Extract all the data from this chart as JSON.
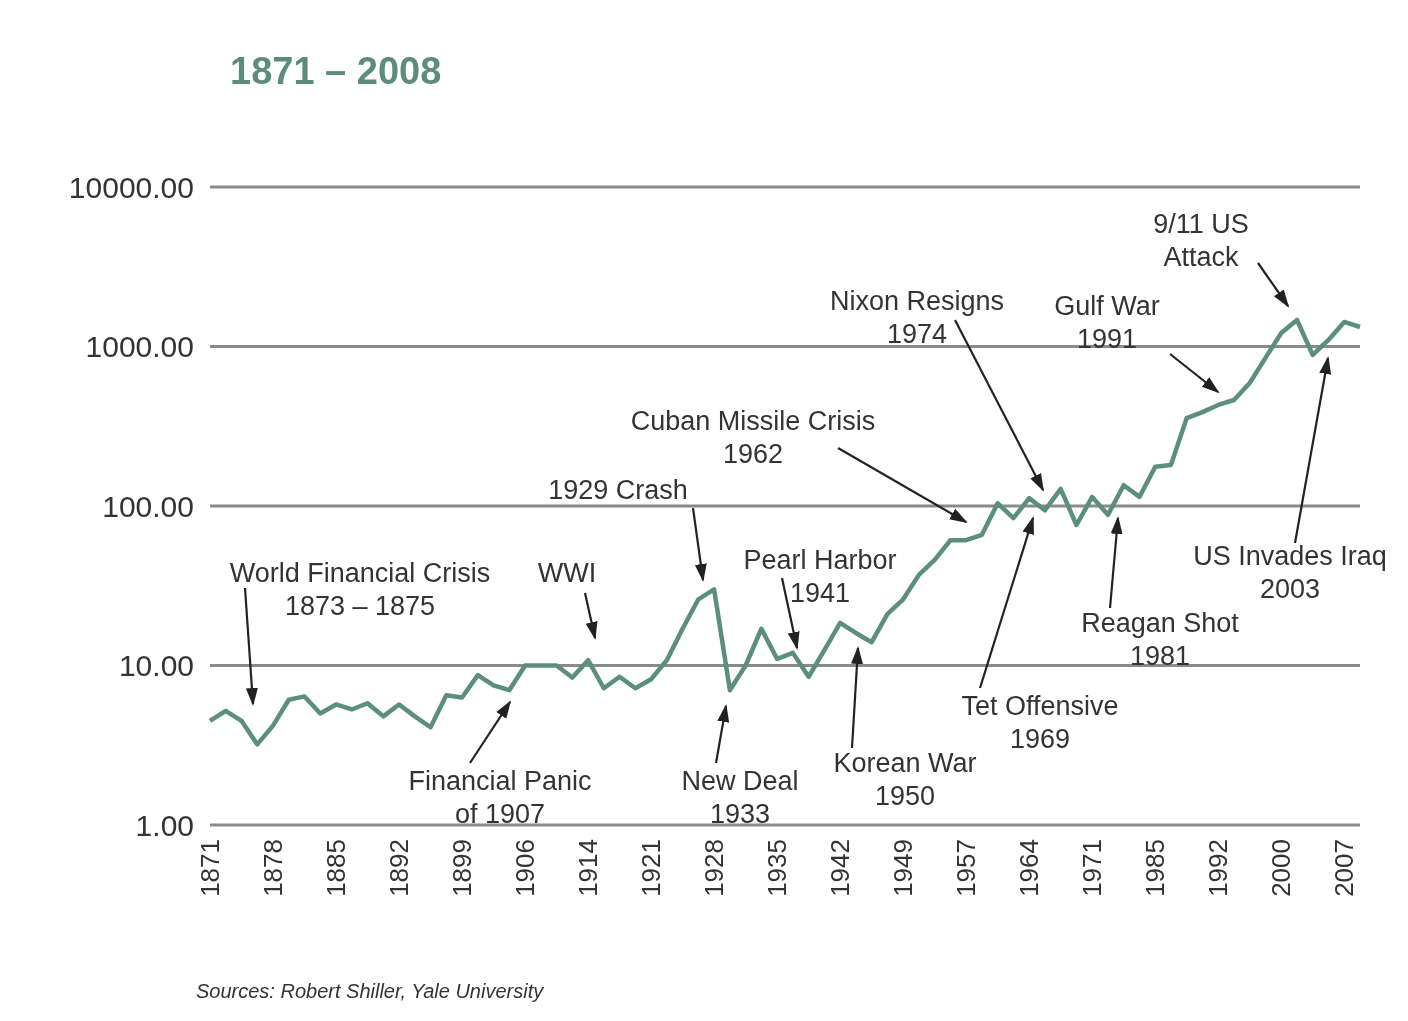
{
  "chart_data": {
    "type": "line",
    "title": "1871 – 2008",
    "categories": [
      "1871",
      null,
      null,
      null,
      "1878",
      null,
      null,
      null,
      "1885",
      null,
      null,
      null,
      "1892",
      null,
      null,
      null,
      "1899",
      null,
      null,
      null,
      "1906",
      null,
      null,
      null,
      "1914",
      null,
      null,
      null,
      "1921",
      null,
      null,
      null,
      "1928",
      null,
      null,
      null,
      "1935",
      null,
      null,
      null,
      "1942",
      null,
      null,
      null,
      "1949",
      null,
      null,
      null,
      "1957",
      null,
      null,
      null,
      "1964",
      null,
      null,
      null,
      "1971",
      null,
      null,
      null,
      "1985",
      null,
      null,
      null,
      "1992",
      null,
      null,
      null,
      "2000",
      null,
      null,
      null,
      "2007",
      null
    ],
    "series": [
      {
        "color": "#5b8f7b",
        "values": [
          4.5,
          5.2,
          4.5,
          3.2,
          4.2,
          6.1,
          6.4,
          5.0,
          5.7,
          5.3,
          5.8,
          4.8,
          5.7,
          4.8,
          4.1,
          6.5,
          6.3,
          8.7,
          7.5,
          7.0,
          10,
          10,
          10,
          8.4,
          10.8,
          7.2,
          8.5,
          7.2,
          8.2,
          10.8,
          17,
          26,
          30,
          7.0,
          10,
          17,
          11,
          12,
          8.5,
          12.5,
          18.5,
          16,
          14,
          21,
          26,
          37,
          46,
          61,
          61,
          66,
          104,
          84,
          112,
          94,
          128,
          76,
          114,
          88,
          135,
          114,
          176,
          181,
          356,
          388,
          430,
          462,
          590,
          848,
          1216,
          1466,
          885,
          1099,
          1425,
          1325
        ]
      }
    ],
    "log": "y",
    "ylim": [
      1,
      10000
    ],
    "yticks": [
      {
        "value": 1,
        "label": "1.00"
      },
      {
        "value": 10,
        "label": "10.00"
      },
      {
        "value": 100,
        "label": "100.00"
      },
      {
        "value": 1000,
        "label": "1000.00"
      },
      {
        "value": 10000,
        "label": "10000.00"
      }
    ],
    "grid": "y",
    "annotations": [
      "World Financial Crisis\n1873 – 1875",
      "WWI",
      "1929 Crash",
      "Cuban Missile Crisis\n1962",
      "Nixon Resigns\n1974",
      "Gulf War\n1991",
      "9/11 US\nAttack",
      "Pearl Harbor\n1941",
      "Financial Panic\nof 1907",
      "New Deal\n1933",
      "Korean War\n1950",
      "Tet Offensive\n1969",
      "Reagan Shot\n1981",
      "US Invades Iraq\n2003",
      "Sources: Robert Shiller, Yale University"
    ]
  }
}
